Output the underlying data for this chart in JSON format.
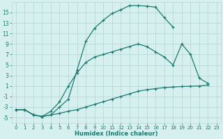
{
  "xlabel": "Humidex (Indice chaleur)",
  "background_color": "#d6f0f0",
  "grid_color": "#b8d8d8",
  "line_color": "#1a7a6e",
  "xlim": [
    -0.5,
    23.5
  ],
  "ylim": [
    -6,
    17
  ],
  "xticks": [
    0,
    1,
    2,
    3,
    4,
    5,
    6,
    7,
    8,
    9,
    10,
    11,
    12,
    13,
    14,
    15,
    16,
    17,
    18,
    19,
    20,
    21,
    22,
    23
  ],
  "yticks": [
    -5,
    -3,
    -1,
    1,
    3,
    5,
    7,
    9,
    11,
    13,
    15
  ],
  "series1_x": [
    0,
    1,
    2,
    3,
    4,
    5,
    6,
    7,
    8,
    9,
    10,
    11,
    12,
    13,
    14,
    15,
    16,
    17,
    18
  ],
  "series1_y": [
    -3.5,
    -3.5,
    -4.5,
    -4.8,
    -4.5,
    -3.0,
    -1.5,
    4.0,
    9.5,
    12.0,
    13.5,
    14.8,
    15.5,
    16.3,
    16.3,
    16.2,
    16.0,
    14.0,
    12.2
  ],
  "series2_x": [
    0,
    1,
    2,
    3,
    4,
    5,
    6,
    7,
    8,
    9,
    10,
    11,
    12,
    13,
    14,
    15,
    16,
    17,
    18,
    19,
    20,
    21,
    22
  ],
  "series2_y": [
    -3.5,
    -3.5,
    -4.5,
    -4.8,
    -3.8,
    -2.0,
    1.0,
    3.5,
    5.5,
    6.5,
    7.0,
    7.5,
    8.0,
    8.5,
    9.0,
    8.5,
    7.5,
    6.5,
    5.0,
    9.0,
    7.0,
    2.5,
    1.5
  ],
  "series3_x": [
    0,
    1,
    2,
    3,
    4,
    5,
    6,
    7,
    8,
    9,
    10,
    11,
    12,
    13,
    14,
    15,
    16,
    17,
    18,
    19,
    20,
    21,
    22
  ],
  "series3_y": [
    -3.5,
    -3.5,
    -4.5,
    -4.8,
    -4.5,
    -4.2,
    -3.8,
    -3.5,
    -3.0,
    -2.5,
    -2.0,
    -1.5,
    -1.0,
    -0.5,
    0.0,
    0.3,
    0.5,
    0.7,
    0.8,
    0.9,
    0.95,
    1.0,
    1.2
  ]
}
